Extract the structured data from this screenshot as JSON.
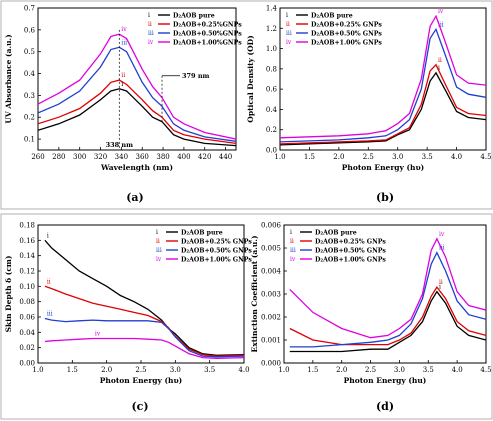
{
  "chart_data": [
    {
      "type": "line",
      "panel_label": "(a)",
      "xlabel": "Wavelength (nm)",
      "ylabel": "UV Absorbance (a.u.)",
      "xlim": [
        260,
        450
      ],
      "ylim": [
        0.05,
        0.7
      ],
      "xticks": [
        260,
        280,
        300,
        320,
        340,
        360,
        380,
        400,
        420,
        440
      ],
      "yticks": [
        0.1,
        0.2,
        0.3,
        0.4,
        0.5,
        0.6,
        0.7
      ],
      "legend_position": "top-right",
      "annotations": [
        "338 nm",
        "379 nm"
      ],
      "series": [
        {
          "name": "D₂AOB pure",
          "label": "i",
          "color": "#000000",
          "x": [
            260,
            280,
            300,
            320,
            330,
            338,
            345,
            360,
            370,
            379,
            390,
            400,
            420,
            450
          ],
          "y": [
            0.14,
            0.17,
            0.21,
            0.28,
            0.32,
            0.33,
            0.32,
            0.25,
            0.2,
            0.18,
            0.12,
            0.1,
            0.08,
            0.07
          ]
        },
        {
          "name": "D₂AOB+0.25%GNPs",
          "label": "ii",
          "color": "#e00000",
          "x": [
            260,
            280,
            300,
            320,
            330,
            338,
            345,
            360,
            370,
            379,
            390,
            400,
            420,
            450
          ],
          "y": [
            0.17,
            0.2,
            0.24,
            0.31,
            0.36,
            0.37,
            0.35,
            0.28,
            0.23,
            0.2,
            0.14,
            0.12,
            0.1,
            0.08
          ]
        },
        {
          "name": "D₂AOB+0.50%GNPs",
          "label": "iii",
          "color": "#1f3fd0",
          "x": [
            260,
            280,
            300,
            320,
            330,
            338,
            345,
            360,
            370,
            379,
            390,
            400,
            420,
            450
          ],
          "y": [
            0.22,
            0.26,
            0.32,
            0.43,
            0.51,
            0.52,
            0.5,
            0.36,
            0.29,
            0.25,
            0.17,
            0.14,
            0.11,
            0.09
          ]
        },
        {
          "name": "D₂AOB+1.00%GNPs",
          "label": "iv",
          "color": "#e000e0",
          "x": [
            260,
            280,
            300,
            320,
            330,
            338,
            345,
            360,
            370,
            379,
            390,
            400,
            420,
            450
          ],
          "y": [
            0.26,
            0.31,
            0.37,
            0.49,
            0.57,
            0.58,
            0.56,
            0.42,
            0.34,
            0.29,
            0.2,
            0.17,
            0.13,
            0.1
          ]
        }
      ]
    },
    {
      "type": "line",
      "panel_label": "(b)",
      "xlabel": "Photon Energy (hυ)",
      "ylabel": "Optical Density (OD)",
      "xlim": [
        1.0,
        4.5
      ],
      "ylim": [
        0.0,
        1.4
      ],
      "xticks": [
        1.0,
        1.5,
        2.0,
        2.5,
        3.0,
        3.5,
        4.0,
        4.5
      ],
      "yticks": [
        0.0,
        0.2,
        0.4,
        0.6,
        0.8,
        1.0,
        1.2,
        1.4
      ],
      "legend_position": "top-left",
      "series": [
        {
          "name": "D₂AOB pure",
          "label": "i",
          "color": "#000000",
          "x": [
            1.0,
            1.5,
            2.0,
            2.5,
            2.8,
            3.0,
            3.2,
            3.4,
            3.55,
            3.65,
            3.8,
            4.0,
            4.2,
            4.5
          ],
          "y": [
            0.05,
            0.06,
            0.07,
            0.08,
            0.09,
            0.15,
            0.2,
            0.4,
            0.68,
            0.76,
            0.6,
            0.38,
            0.32,
            0.3
          ]
        },
        {
          "name": "D₂AOB+0.25% GNPs",
          "label": "ii",
          "color": "#e00000",
          "x": [
            1.0,
            1.5,
            2.0,
            2.5,
            2.8,
            3.0,
            3.2,
            3.4,
            3.55,
            3.65,
            3.8,
            4.0,
            4.2,
            4.5
          ],
          "y": [
            0.06,
            0.07,
            0.08,
            0.09,
            0.1,
            0.16,
            0.22,
            0.45,
            0.78,
            0.84,
            0.66,
            0.42,
            0.36,
            0.34
          ]
        },
        {
          "name": "D₂AOB+0.50% GNPs",
          "label": "iii",
          "color": "#1f3fd0",
          "x": [
            1.0,
            1.5,
            2.0,
            2.5,
            2.8,
            3.0,
            3.2,
            3.4,
            3.55,
            3.65,
            3.8,
            4.0,
            4.2,
            4.5
          ],
          "y": [
            0.08,
            0.09,
            0.1,
            0.12,
            0.14,
            0.2,
            0.3,
            0.6,
            1.1,
            1.19,
            0.95,
            0.62,
            0.55,
            0.52
          ]
        },
        {
          "name": "D₂AOB+1.00% GNPs",
          "label": "iv",
          "color": "#e000e0",
          "x": [
            1.0,
            1.5,
            2.0,
            2.5,
            2.8,
            3.0,
            3.2,
            3.4,
            3.55,
            3.65,
            3.8,
            4.0,
            4.2,
            4.5
          ],
          "y": [
            0.12,
            0.13,
            0.14,
            0.16,
            0.19,
            0.26,
            0.36,
            0.7,
            1.22,
            1.32,
            1.08,
            0.74,
            0.66,
            0.64
          ]
        }
      ]
    },
    {
      "type": "line",
      "panel_label": "(c)",
      "xlabel": "Photon Energy (hυ)",
      "ylabel": "Skin Depth δ (cm)",
      "xlim": [
        1.0,
        4.0
      ],
      "ylim": [
        0.0,
        0.18
      ],
      "xticks": [
        1.0,
        1.5,
        2.0,
        2.5,
        3.0,
        3.5,
        4.0
      ],
      "yticks": [
        0.0,
        0.02,
        0.04,
        0.06,
        0.08,
        0.1,
        0.12,
        0.14,
        0.16,
        0.18
      ],
      "legend_position": "top-right",
      "series": [
        {
          "name": "D₂AOB pure",
          "label": "i",
          "color": "#000000",
          "x": [
            1.1,
            1.2,
            1.4,
            1.6,
            1.8,
            2.0,
            2.2,
            2.4,
            2.6,
            2.8,
            2.9,
            3.0,
            3.2,
            3.4,
            3.6,
            4.0
          ],
          "y": [
            0.16,
            0.15,
            0.135,
            0.12,
            0.11,
            0.1,
            0.088,
            0.08,
            0.07,
            0.056,
            0.045,
            0.038,
            0.02,
            0.012,
            0.01,
            0.011
          ]
        },
        {
          "name": "D₂AOB+0.25% GNPs",
          "label": "ii",
          "color": "#e00000",
          "x": [
            1.1,
            1.2,
            1.4,
            1.6,
            1.8,
            2.0,
            2.2,
            2.4,
            2.6,
            2.8,
            2.9,
            3.0,
            3.2,
            3.4,
            3.6,
            4.0
          ],
          "y": [
            0.1,
            0.097,
            0.09,
            0.084,
            0.078,
            0.074,
            0.07,
            0.066,
            0.062,
            0.054,
            0.046,
            0.035,
            0.018,
            0.011,
            0.009,
            0.01
          ]
        },
        {
          "name": "D₂AOB+0.50% GNPs",
          "label": "iii",
          "color": "#1f3fd0",
          "x": [
            1.1,
            1.2,
            1.4,
            1.6,
            1.8,
            2.0,
            2.2,
            2.4,
            2.6,
            2.8,
            2.9,
            3.0,
            3.2,
            3.4,
            3.6,
            4.0
          ],
          "y": [
            0.058,
            0.056,
            0.054,
            0.055,
            0.056,
            0.055,
            0.055,
            0.055,
            0.055,
            0.053,
            0.045,
            0.034,
            0.016,
            0.009,
            0.008,
            0.009
          ]
        },
        {
          "name": "D₂AOB+1.00% GNPs",
          "label": "iv",
          "color": "#e000e0",
          "x": [
            1.1,
            1.2,
            1.4,
            1.6,
            1.8,
            2.0,
            2.2,
            2.4,
            2.6,
            2.8,
            2.9,
            3.0,
            3.2,
            3.4,
            3.6,
            4.0
          ],
          "y": [
            0.028,
            0.029,
            0.03,
            0.031,
            0.032,
            0.032,
            0.032,
            0.032,
            0.031,
            0.03,
            0.027,
            0.022,
            0.012,
            0.007,
            0.006,
            0.007
          ]
        }
      ]
    },
    {
      "type": "line",
      "panel_label": "(d)",
      "xlabel": "Photon Energy (hu)",
      "ylabel": "Extinction Coefficient (a.u.)",
      "xlim": [
        1.0,
        4.5
      ],
      "ylim": [
        0.0,
        0.006
      ],
      "xticks": [
        1.0,
        1.5,
        2.0,
        2.5,
        3.0,
        3.5,
        4.0,
        4.5
      ],
      "yticks": [
        0.0,
        0.001,
        0.002,
        0.003,
        0.004,
        0.005,
        0.006
      ],
      "legend_position": "top-left",
      "series": [
        {
          "name": "D₂AOB pure",
          "label": "i",
          "color": "#000000",
          "x": [
            1.1,
            1.5,
            2.0,
            2.5,
            2.8,
            3.0,
            3.2,
            3.4,
            3.55,
            3.65,
            3.8,
            4.0,
            4.2,
            4.5
          ],
          "y": [
            0.0005,
            0.0005,
            0.0005,
            0.0006,
            0.0006,
            0.0009,
            0.0012,
            0.0018,
            0.0027,
            0.0031,
            0.0026,
            0.0016,
            0.0012,
            0.001
          ]
        },
        {
          "name": "D₂AOB+0.25% GNPs",
          "label": "ii",
          "color": "#e00000",
          "x": [
            1.1,
            1.5,
            2.0,
            2.5,
            2.8,
            3.0,
            3.2,
            3.4,
            3.55,
            3.65,
            3.8,
            4.0,
            4.2,
            4.5
          ],
          "y": [
            0.0015,
            0.001,
            0.0008,
            0.0008,
            0.0008,
            0.001,
            0.0013,
            0.002,
            0.0029,
            0.0033,
            0.0028,
            0.0018,
            0.0014,
            0.0012
          ]
        },
        {
          "name": "D₂AOB+0.50% GNPs",
          "label": "iii",
          "color": "#1f3fd0",
          "x": [
            1.1,
            1.5,
            2.0,
            2.5,
            2.8,
            3.0,
            3.2,
            3.4,
            3.55,
            3.65,
            3.8,
            4.0,
            4.2,
            4.5
          ],
          "y": [
            0.0007,
            0.0007,
            0.0008,
            0.0009,
            0.001,
            0.0012,
            0.0017,
            0.0028,
            0.0043,
            0.0048,
            0.004,
            0.0027,
            0.0021,
            0.0019
          ]
        },
        {
          "name": "D₂AOB+1.00% GNPs",
          "label": "iv",
          "color": "#e000e0",
          "x": [
            1.1,
            1.5,
            2.0,
            2.5,
            2.8,
            3.0,
            3.2,
            3.4,
            3.55,
            3.65,
            3.8,
            4.0,
            4.2,
            4.5
          ],
          "y": [
            0.0032,
            0.0022,
            0.0015,
            0.0011,
            0.0012,
            0.0015,
            0.0019,
            0.003,
            0.0049,
            0.0054,
            0.0046,
            0.0031,
            0.0025,
            0.0023
          ]
        }
      ]
    }
  ]
}
